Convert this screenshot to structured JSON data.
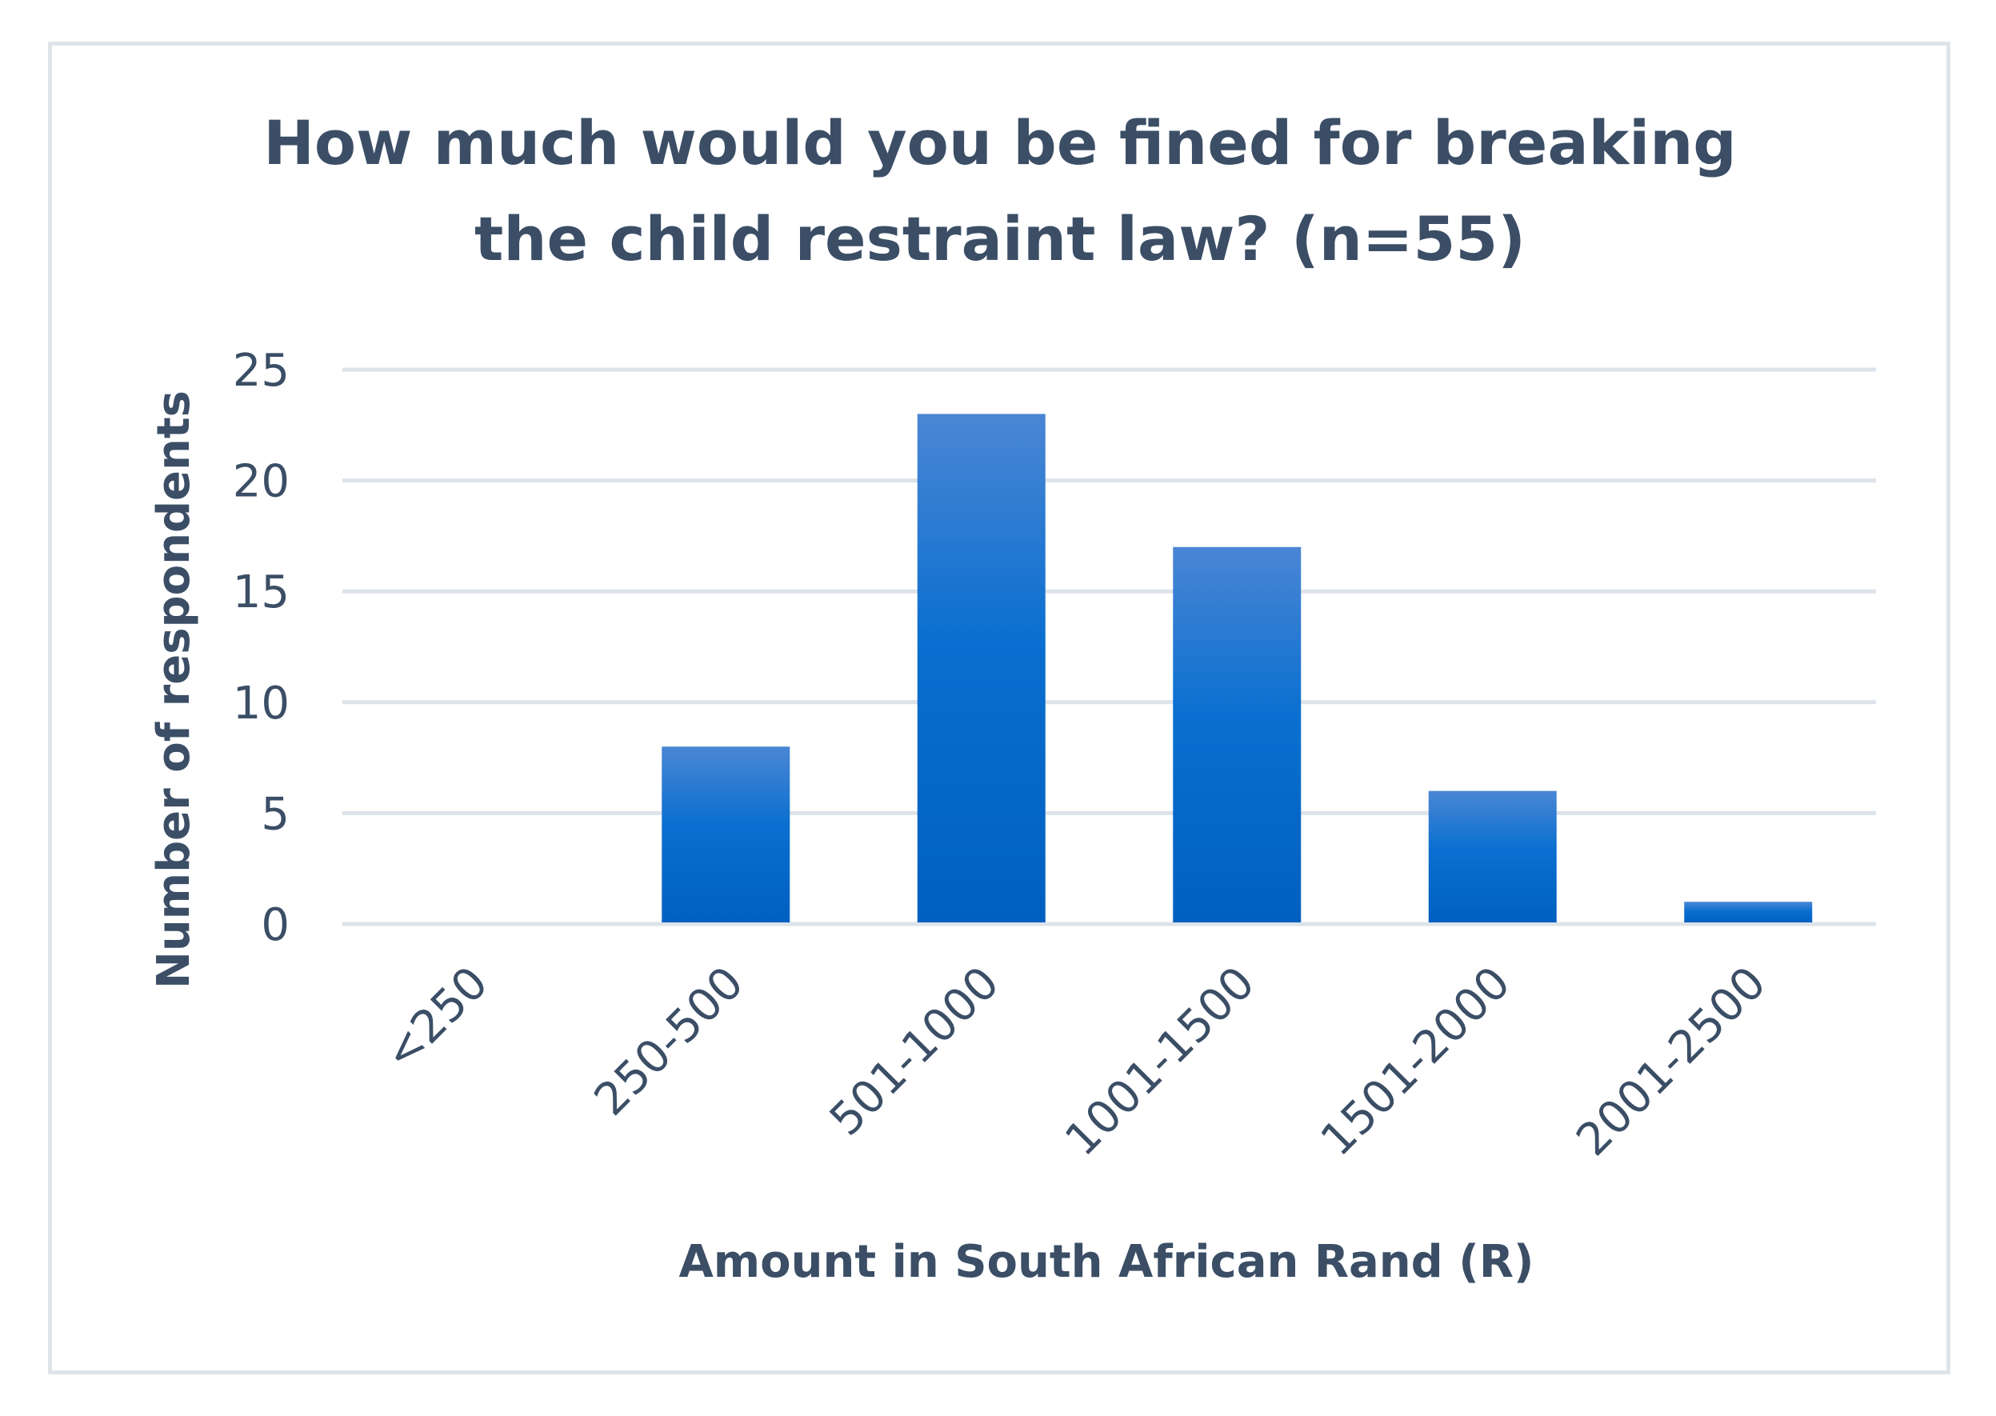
{
  "chart_data": {
    "type": "bar",
    "title_lines": [
      "How much would you be fined for breaking",
      "the child restraint law? (n=55)"
    ],
    "xlabel": "Amount in South African Rand (R)",
    "ylabel": "Number of respondents",
    "categories": [
      "<250",
      "250-500",
      "501-1000",
      "1001-1500",
      "1501-2000",
      "2001-2500"
    ],
    "values": [
      0,
      8,
      23,
      17,
      6,
      1
    ],
    "ylim": [
      0,
      25
    ],
    "yticks": [
      "0",
      "5",
      "10",
      "15",
      "20",
      "25"
    ],
    "grid": true,
    "legend": "none",
    "colors": {
      "bar_top": "#4a86d4",
      "bar_bottom": "#0060c0",
      "grid": "#dde3ea",
      "text": "#3b4e66"
    }
  }
}
